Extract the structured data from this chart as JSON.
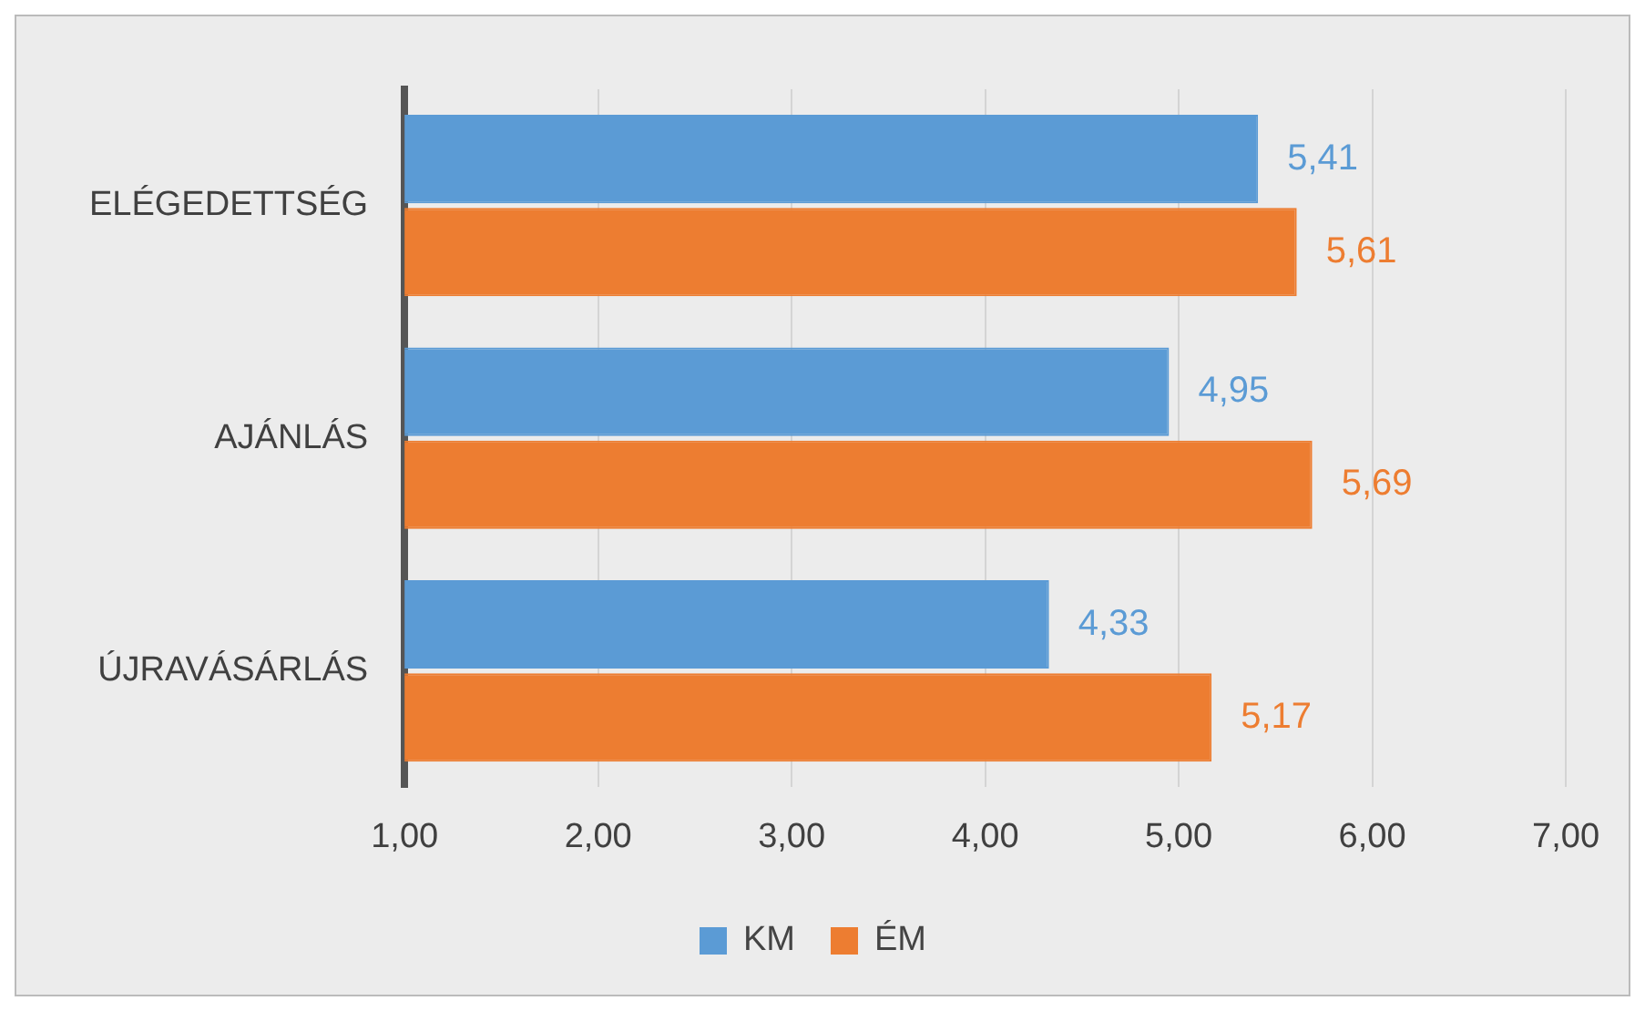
{
  "chart_data": {
    "type": "bar",
    "orientation": "horizontal",
    "categories": [
      "ELÉGEDETTSÉG",
      "AJÁNLÁS",
      "ÚJRAVÁSÁRLÁS"
    ],
    "series": [
      {
        "name": "KM",
        "color": "#5b9bd5",
        "values": [
          5.41,
          4.95,
          4.33
        ],
        "value_labels": [
          "5,41",
          "4,95",
          "4,33"
        ]
      },
      {
        "name": "ÉM",
        "color": "#ed7d31",
        "values": [
          5.61,
          5.69,
          5.17
        ],
        "value_labels": [
          "5,61",
          "5,69",
          "5,17"
        ]
      }
    ],
    "xlim": [
      1,
      7
    ],
    "xticks": [
      {
        "value": 1,
        "label": "1,00"
      },
      {
        "value": 2,
        "label": "2,00"
      },
      {
        "value": 3,
        "label": "3,00"
      },
      {
        "value": 4,
        "label": "4,00"
      },
      {
        "value": 5,
        "label": "5,00"
      },
      {
        "value": 6,
        "label": "6,00"
      },
      {
        "value": 7,
        "label": "7,00"
      }
    ],
    "grid": "x",
    "legend": "bottom"
  }
}
